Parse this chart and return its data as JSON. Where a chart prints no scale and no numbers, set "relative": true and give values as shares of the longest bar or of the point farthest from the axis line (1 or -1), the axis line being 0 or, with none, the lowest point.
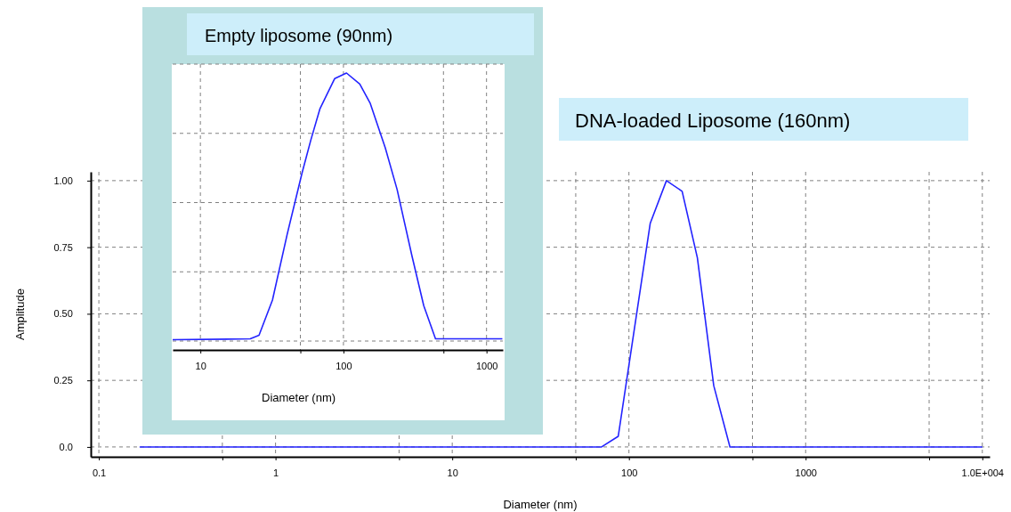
{
  "chart_data": [
    {
      "type": "line",
      "xlabel": "Diameter (nm)",
      "ylabel": "Amplitude",
      "log": "x",
      "grid": true,
      "annotations": [
        "DNA-loaded Liposome (160nm)"
      ],
      "xlim": [
        0.09,
        11000
      ],
      "ylim": [
        -0.037,
        1.033
      ],
      "xticks": [
        0.1,
        {
          "value": 0.5,
          "label": null
        },
        1,
        {
          "value": 5,
          "label": null
        },
        10,
        {
          "value": 50,
          "label": null
        },
        100,
        {
          "value": 500,
          "label": null
        },
        1000,
        {
          "value": 5000,
          "label": null
        },
        {
          "value": 10000,
          "label": "1.0E+004"
        }
      ],
      "yticks": [
        {
          "value": 0,
          "label": "0.0"
        },
        0.25,
        {
          "value": 0.5,
          "label": "0.50"
        },
        0.75,
        {
          "value": 1,
          "label": "1.00"
        }
      ],
      "x": [
        0.17,
        70,
        87,
        132,
        163,
        200,
        244,
        302,
        373,
        10000
      ],
      "series": [
        {
          "color": "#2323ff",
          "values": [
            0,
            0,
            0.04,
            0.84,
            1,
            0.96,
            0.71,
            0.23,
            0,
            0
          ]
        }
      ]
    },
    {
      "type": "line",
      "title": "Empty liposome (90nm)",
      "xlabel": "Diameter (nm)",
      "log": "x",
      "grid": true,
      "relative": true,
      "xlim": [
        6.4,
        1300
      ],
      "xticks": [
        10,
        {
          "value": 50,
          "label": null
        },
        100,
        {
          "value": 500,
          "label": null
        },
        1000
      ],
      "x": [
        6.4,
        22.3,
        25.7,
        31.9,
        40.4,
        51.4,
        59.3,
        68.4,
        86.9,
        105,
        130,
        154,
        196,
        237,
        301,
        364,
        440,
        1290
      ],
      "series": [
        {
          "color": "#2323ff",
          "values": [
            0.037,
            0.04,
            0.053,
            0.18,
            0.417,
            0.64,
            0.76,
            0.87,
            0.98,
            1,
            0.96,
            0.89,
            0.73,
            0.58,
            0.34,
            0.16,
            0.04,
            0.04
          ]
        }
      ]
    }
  ]
}
